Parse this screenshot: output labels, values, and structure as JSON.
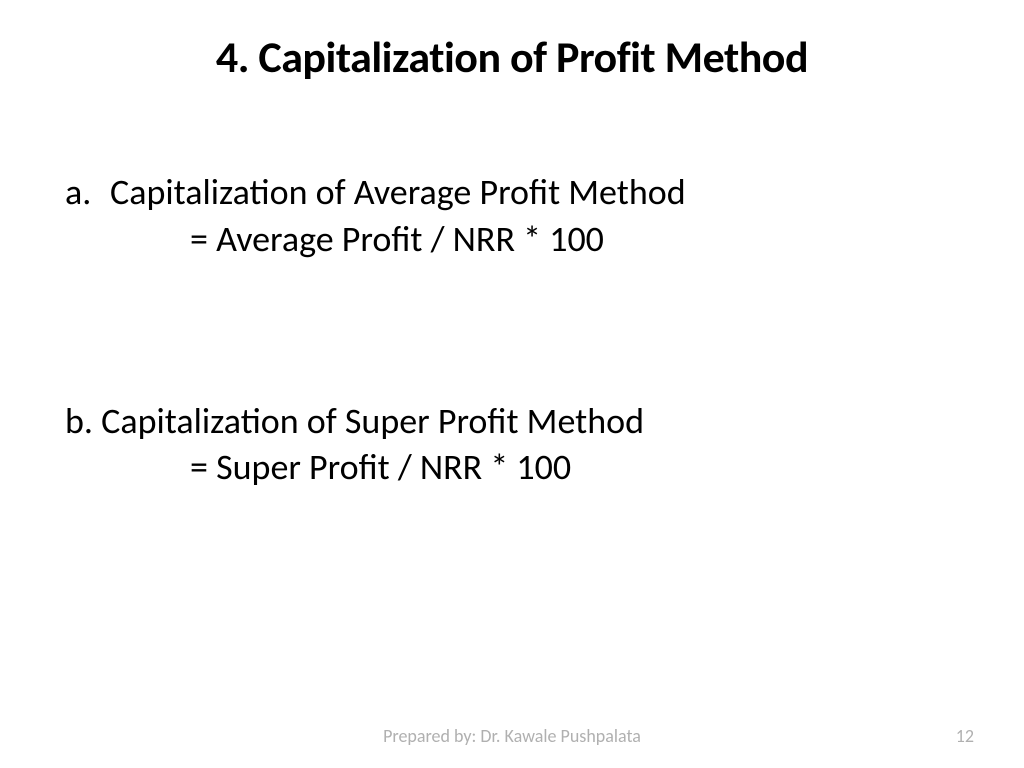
{
  "slide": {
    "title": "4. Capitalization of Profit Method",
    "items": [
      {
        "marker": "a.",
        "label": "Capitalization of Average Profit Method",
        "formula": "= Average Profit / NRR * 100"
      },
      {
        "marker": "b.",
        "label": "Capitalization of Super Profit Method",
        "formula": "= Super Profit / NRR * 100"
      }
    ],
    "footer": {
      "author": "Prepared by: Dr. Kawale Pushpalata",
      "page": "12"
    }
  },
  "styling": {
    "background_color": "#ffffff",
    "text_color": "#000000",
    "footer_color": "#b0b0b0",
    "title_fontsize": 44,
    "title_fontweight": "bold",
    "body_fontsize": 36,
    "footer_fontsize": 18,
    "font_family": "Calibri"
  }
}
